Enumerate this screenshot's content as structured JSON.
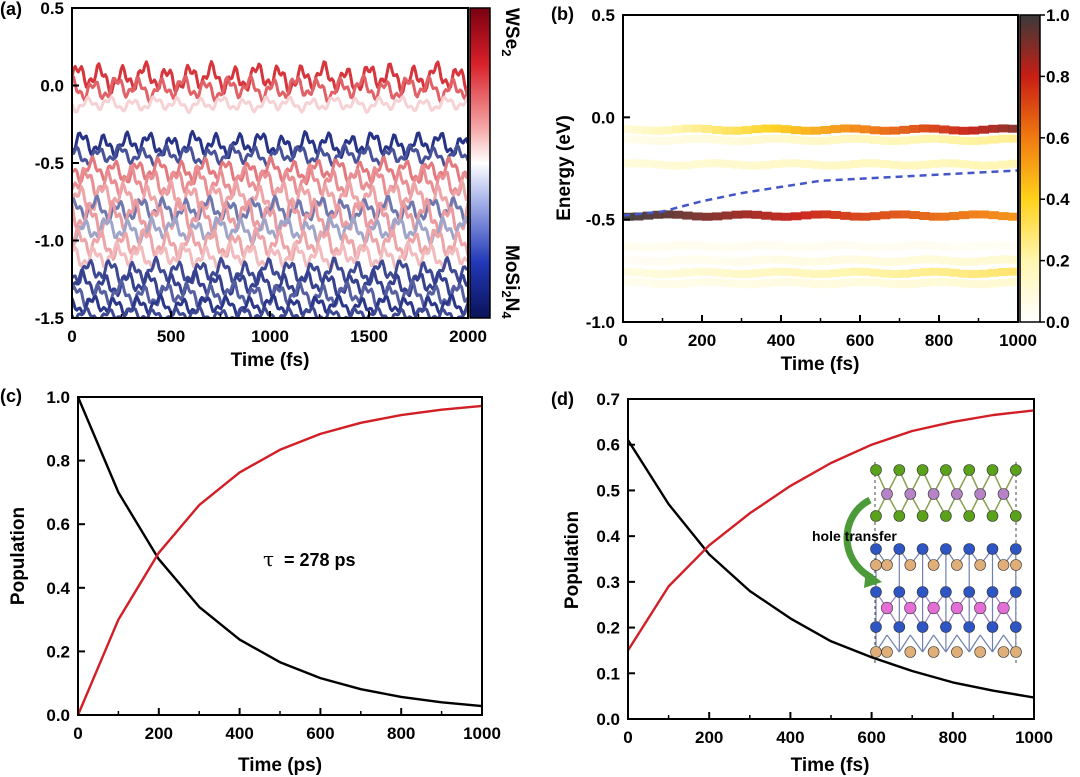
{
  "panels": [
    {
      "id": "a",
      "label": "(a)"
    },
    {
      "id": "b",
      "label": "(b)"
    },
    {
      "id": "c",
      "label": "(c)"
    },
    {
      "id": "d",
      "label": "(d)"
    }
  ],
  "colors": {
    "red_curve": "#d21f26",
    "black_curve": "#000000",
    "dashed_blue": "#4456c8",
    "wse2_red": "#c8102e",
    "mosi2n4_blue": "#0a1a72",
    "atom_green": "#5aa21a",
    "atom_purple": "#b683c6",
    "atom_blue": "#2e55c4",
    "atom_tan": "#e0ae78",
    "atom_pink": "#e36fd6"
  },
  "chart_data": [
    {
      "panel": "a",
      "type": "line",
      "title": "",
      "xlabel": "Time (fs)",
      "ylabel": "",
      "xlim": [
        0,
        2000
      ],
      "ylim": [
        -1.5,
        0.5
      ],
      "xticks": [
        0,
        500,
        1000,
        1500,
        2000
      ],
      "yticks": [
        -1.5,
        -1.0,
        -0.5,
        0.0,
        0.5
      ],
      "ytick_labels": [
        "-1.5",
        "-1.0",
        "-0.5",
        "0.0",
        "0.5"
      ],
      "colorbar": {
        "top_label": "WSe",
        "top_sub": "2",
        "bottom_label": "MoSi",
        "bottom_sub1": "2",
        "bottom_mid": "N",
        "bottom_sub2": "4"
      },
      "series": [
        {
          "name": "band",
          "center": 0.05,
          "amp": 0.06,
          "mix": 0.95
        },
        {
          "name": "band",
          "center": -0.02,
          "amp": 0.05,
          "mix": 0.85
        },
        {
          "name": "band",
          "center": -0.12,
          "amp": 0.03,
          "mix": 0.6
        },
        {
          "name": "band",
          "center": -0.38,
          "amp": 0.05,
          "mix": 0.05
        },
        {
          "name": "band",
          "center": -0.45,
          "amp": 0.04,
          "mix": 0.12
        },
        {
          "name": "band",
          "center": -0.55,
          "amp": 0.05,
          "mix": 0.8
        },
        {
          "name": "band",
          "center": -0.62,
          "amp": 0.06,
          "mix": 0.75
        },
        {
          "name": "band",
          "center": -0.72,
          "amp": 0.06,
          "mix": 0.7
        },
        {
          "name": "band",
          "center": -0.8,
          "amp": 0.05,
          "mix": 0.2
        },
        {
          "name": "band",
          "center": -0.85,
          "amp": 0.07,
          "mix": 0.72
        },
        {
          "name": "band",
          "center": -0.93,
          "amp": 0.05,
          "mix": 0.3
        },
        {
          "name": "band",
          "center": -1.02,
          "amp": 0.06,
          "mix": 0.7
        },
        {
          "name": "band",
          "center": -1.1,
          "amp": 0.05,
          "mix": 0.65
        },
        {
          "name": "band",
          "center": -1.2,
          "amp": 0.05,
          "mix": 0.1
        },
        {
          "name": "band",
          "center": -1.28,
          "amp": 0.05,
          "mix": 0.08
        },
        {
          "name": "band",
          "center": -1.35,
          "amp": 0.05,
          "mix": 0.15
        },
        {
          "name": "band",
          "center": -1.42,
          "amp": 0.04,
          "mix": 0.06
        },
        {
          "name": "band",
          "center": -1.48,
          "amp": 0.03,
          "mix": 0.1
        }
      ]
    },
    {
      "panel": "b",
      "type": "heatmap",
      "xlabel": "Time (fs)",
      "ylabel": "Energy (eV)",
      "xlim": [
        0,
        1000
      ],
      "ylim": [
        -1.0,
        0.5
      ],
      "xticks": [
        0,
        200,
        400,
        600,
        800,
        1000
      ],
      "yticks": [
        -1.0,
        -0.5,
        0.0,
        0.5
      ],
      "ytick_labels": [
        "-1.0",
        "-0.5",
        "0.0",
        "0.5"
      ],
      "colorbar": {
        "min": 0.0,
        "max": 1.0,
        "ticks": [
          "0.0",
          "0.2",
          "0.4",
          "0.6",
          "0.8",
          "1.0"
        ]
      },
      "bands": [
        {
          "energy": -0.06,
          "start": 0.1,
          "end": 0.9
        },
        {
          "energy": -0.11,
          "start": 0.05,
          "end": 0.25
        },
        {
          "energy": -0.23,
          "start": 0.1,
          "end": 0.2
        },
        {
          "energy": -0.48,
          "start": 1.0,
          "end": 0.55
        },
        {
          "energy": -0.63,
          "start": 0.05,
          "end": 0.03
        },
        {
          "energy": -0.7,
          "start": 0.03,
          "end": 0.12
        },
        {
          "energy": -0.76,
          "start": 0.08,
          "end": 0.3
        },
        {
          "energy": -0.81,
          "start": 0.05,
          "end": 0.12
        }
      ],
      "average_energy": {
        "time": [
          0,
          100,
          200,
          300,
          400,
          500,
          600,
          700,
          800,
          900,
          1000
        ],
        "energy": [
          -0.48,
          -0.46,
          -0.41,
          -0.37,
          -0.34,
          -0.31,
          -0.3,
          -0.29,
          -0.28,
          -0.27,
          -0.26
        ]
      }
    },
    {
      "panel": "c",
      "type": "line",
      "xlabel": "Time (ps)",
      "ylabel": "Population",
      "xlim": [
        0,
        1000
      ],
      "ylim": [
        0.0,
        1.0
      ],
      "xticks": [
        0,
        200,
        400,
        600,
        800,
        1000
      ],
      "yticks": [
        0.0,
        0.2,
        0.4,
        0.6,
        0.8,
        1.0
      ],
      "ytick_labels": [
        "0.0",
        "0.2",
        "0.4",
        "0.6",
        "0.8",
        "1.0"
      ],
      "annotation": {
        "symbol": "τ",
        "text": "= 278 ps"
      },
      "series": [
        {
          "name": "decay",
          "color": "black",
          "x": [
            0,
            100,
            200,
            300,
            400,
            500,
            600,
            700,
            800,
            900,
            1000
          ],
          "values": [
            1.0,
            0.7,
            0.49,
            0.34,
            0.237,
            0.166,
            0.116,
            0.081,
            0.057,
            0.04,
            0.028
          ]
        },
        {
          "name": "rise",
          "color": "red",
          "x": [
            0,
            100,
            200,
            300,
            400,
            500,
            600,
            700,
            800,
            900,
            1000
          ],
          "values": [
            0.0,
            0.3,
            0.51,
            0.66,
            0.763,
            0.834,
            0.884,
            0.919,
            0.943,
            0.96,
            0.972
          ]
        }
      ]
    },
    {
      "panel": "d",
      "type": "line",
      "xlabel": "Time (fs)",
      "ylabel": "Population",
      "xlim": [
        0,
        1000
      ],
      "ylim": [
        0.0,
        0.7
      ],
      "xticks": [
        0,
        200,
        400,
        600,
        800,
        1000
      ],
      "yticks": [
        0.0,
        0.1,
        0.2,
        0.3,
        0.4,
        0.5,
        0.6,
        0.7
      ],
      "ytick_labels": [
        "0.0",
        "0.1",
        "0.2",
        "0.3",
        "0.4",
        "0.5",
        "0.6",
        "0.7"
      ],
      "inset_label": "hole transfer",
      "series": [
        {
          "name": "decay",
          "color": "black",
          "x": [
            0,
            100,
            200,
            300,
            400,
            500,
            600,
            700,
            800,
            900,
            1000
          ],
          "values": [
            0.61,
            0.47,
            0.36,
            0.28,
            0.22,
            0.17,
            0.135,
            0.105,
            0.08,
            0.062,
            0.047
          ]
        },
        {
          "name": "rise",
          "color": "red",
          "x": [
            0,
            100,
            200,
            300,
            400,
            500,
            600,
            700,
            800,
            900,
            1000
          ],
          "values": [
            0.15,
            0.29,
            0.38,
            0.45,
            0.51,
            0.56,
            0.6,
            0.63,
            0.65,
            0.665,
            0.675
          ]
        }
      ]
    }
  ]
}
